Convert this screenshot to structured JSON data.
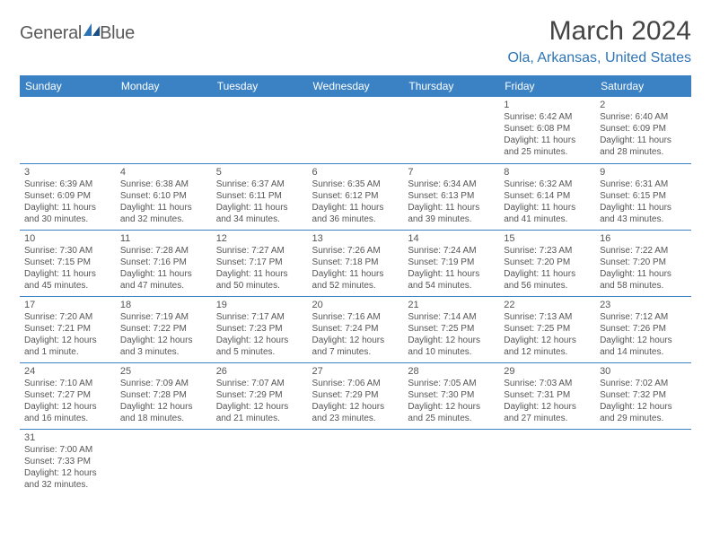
{
  "brand": {
    "word1": "General",
    "word2": "Blue",
    "shape_color": "#2e74b5",
    "shape_color2": "#1b4f82"
  },
  "title": "March 2024",
  "location": "Ola, Arkansas, United States",
  "header_bg": "#3b82c4",
  "header_fg": "#ffffff",
  "border_color": "#3b82c4",
  "text_color": "#555555",
  "day_labels": [
    "Sunday",
    "Monday",
    "Tuesday",
    "Wednesday",
    "Thursday",
    "Friday",
    "Saturday"
  ],
  "first_weekday": 5,
  "days_in_month": 31,
  "days": {
    "1": {
      "sunrise": "6:42 AM",
      "sunset": "6:08 PM",
      "daylight": "11 hours and 25 minutes."
    },
    "2": {
      "sunrise": "6:40 AM",
      "sunset": "6:09 PM",
      "daylight": "11 hours and 28 minutes."
    },
    "3": {
      "sunrise": "6:39 AM",
      "sunset": "6:09 PM",
      "daylight": "11 hours and 30 minutes."
    },
    "4": {
      "sunrise": "6:38 AM",
      "sunset": "6:10 PM",
      "daylight": "11 hours and 32 minutes."
    },
    "5": {
      "sunrise": "6:37 AM",
      "sunset": "6:11 PM",
      "daylight": "11 hours and 34 minutes."
    },
    "6": {
      "sunrise": "6:35 AM",
      "sunset": "6:12 PM",
      "daylight": "11 hours and 36 minutes."
    },
    "7": {
      "sunrise": "6:34 AM",
      "sunset": "6:13 PM",
      "daylight": "11 hours and 39 minutes."
    },
    "8": {
      "sunrise": "6:32 AM",
      "sunset": "6:14 PM",
      "daylight": "11 hours and 41 minutes."
    },
    "9": {
      "sunrise": "6:31 AM",
      "sunset": "6:15 PM",
      "daylight": "11 hours and 43 minutes."
    },
    "10": {
      "sunrise": "7:30 AM",
      "sunset": "7:15 PM",
      "daylight": "11 hours and 45 minutes."
    },
    "11": {
      "sunrise": "7:28 AM",
      "sunset": "7:16 PM",
      "daylight": "11 hours and 47 minutes."
    },
    "12": {
      "sunrise": "7:27 AM",
      "sunset": "7:17 PM",
      "daylight": "11 hours and 50 minutes."
    },
    "13": {
      "sunrise": "7:26 AM",
      "sunset": "7:18 PM",
      "daylight": "11 hours and 52 minutes."
    },
    "14": {
      "sunrise": "7:24 AM",
      "sunset": "7:19 PM",
      "daylight": "11 hours and 54 minutes."
    },
    "15": {
      "sunrise": "7:23 AM",
      "sunset": "7:20 PM",
      "daylight": "11 hours and 56 minutes."
    },
    "16": {
      "sunrise": "7:22 AM",
      "sunset": "7:20 PM",
      "daylight": "11 hours and 58 minutes."
    },
    "17": {
      "sunrise": "7:20 AM",
      "sunset": "7:21 PM",
      "daylight": "12 hours and 1 minute."
    },
    "18": {
      "sunrise": "7:19 AM",
      "sunset": "7:22 PM",
      "daylight": "12 hours and 3 minutes."
    },
    "19": {
      "sunrise": "7:17 AM",
      "sunset": "7:23 PM",
      "daylight": "12 hours and 5 minutes."
    },
    "20": {
      "sunrise": "7:16 AM",
      "sunset": "7:24 PM",
      "daylight": "12 hours and 7 minutes."
    },
    "21": {
      "sunrise": "7:14 AM",
      "sunset": "7:25 PM",
      "daylight": "12 hours and 10 minutes."
    },
    "22": {
      "sunrise": "7:13 AM",
      "sunset": "7:25 PM",
      "daylight": "12 hours and 12 minutes."
    },
    "23": {
      "sunrise": "7:12 AM",
      "sunset": "7:26 PM",
      "daylight": "12 hours and 14 minutes."
    },
    "24": {
      "sunrise": "7:10 AM",
      "sunset": "7:27 PM",
      "daylight": "12 hours and 16 minutes."
    },
    "25": {
      "sunrise": "7:09 AM",
      "sunset": "7:28 PM",
      "daylight": "12 hours and 18 minutes."
    },
    "26": {
      "sunrise": "7:07 AM",
      "sunset": "7:29 PM",
      "daylight": "12 hours and 21 minutes."
    },
    "27": {
      "sunrise": "7:06 AM",
      "sunset": "7:29 PM",
      "daylight": "12 hours and 23 minutes."
    },
    "28": {
      "sunrise": "7:05 AM",
      "sunset": "7:30 PM",
      "daylight": "12 hours and 25 minutes."
    },
    "29": {
      "sunrise": "7:03 AM",
      "sunset": "7:31 PM",
      "daylight": "12 hours and 27 minutes."
    },
    "30": {
      "sunrise": "7:02 AM",
      "sunset": "7:32 PM",
      "daylight": "12 hours and 29 minutes."
    },
    "31": {
      "sunrise": "7:00 AM",
      "sunset": "7:33 PM",
      "daylight": "12 hours and 32 minutes."
    }
  },
  "labels": {
    "sunrise": "Sunrise:",
    "sunset": "Sunset:",
    "daylight": "Daylight:"
  }
}
